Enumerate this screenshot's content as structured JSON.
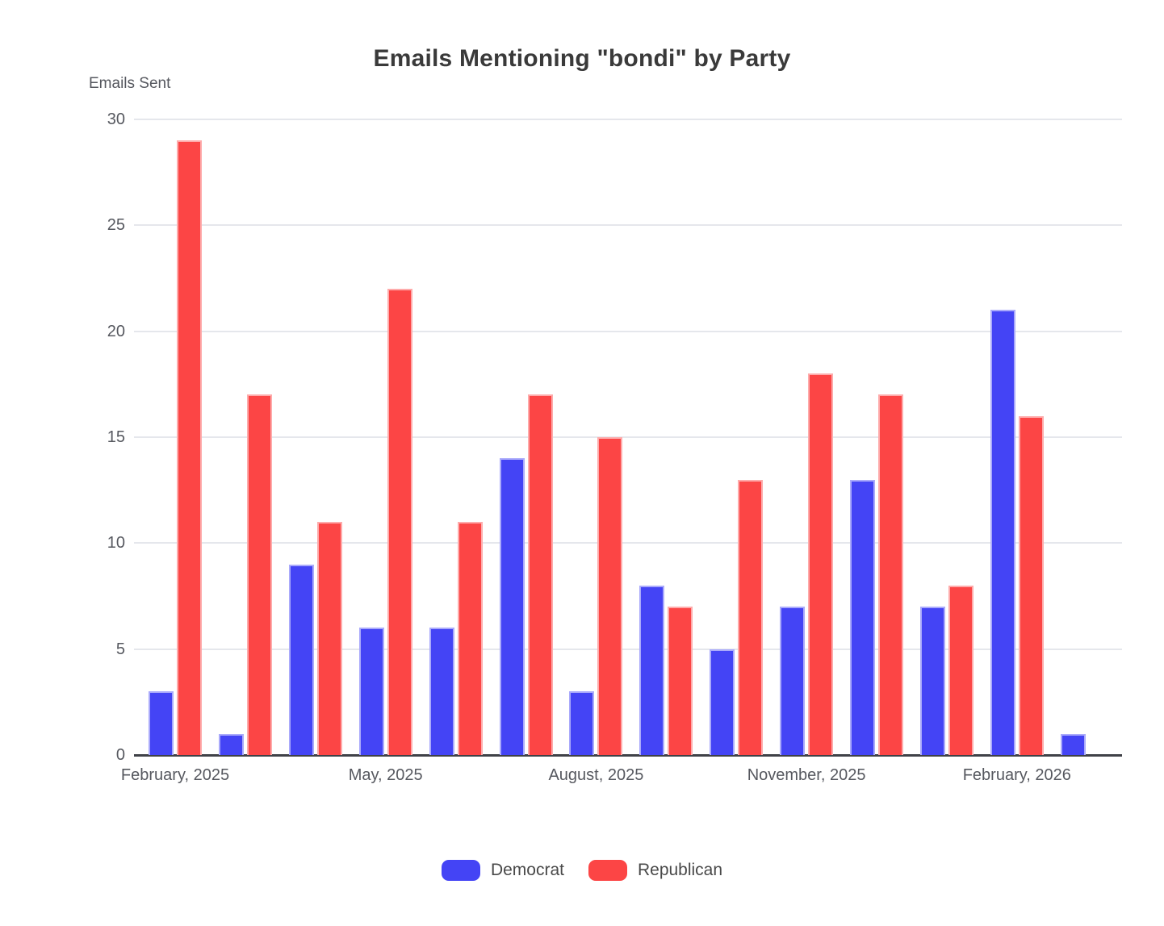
{
  "title": "Emails Mentioning \"bondi\" by Party",
  "y_axis_title": "Emails Sent",
  "colors": {
    "democrat": "#4444f5",
    "republican": "#fc4545",
    "gridline": "#e5e7ec",
    "axis_line": "#3f4147",
    "text": "#56585f",
    "title_text": "#3a3a3a"
  },
  "legend": {
    "position": "bottom",
    "items": [
      {
        "label": "Democrat",
        "color": "#4444f5"
      },
      {
        "label": "Republican",
        "color": "#fc4545"
      }
    ]
  },
  "chart_data": {
    "type": "bar",
    "title": "Emails Mentioning \"bondi\" by Party",
    "xlabel": "",
    "ylabel": "Emails Sent",
    "ylim": [
      0,
      30
    ],
    "yticks": [
      0,
      5,
      10,
      15,
      20,
      25,
      30
    ],
    "grid": true,
    "legend_position": "bottom",
    "categories": [
      "Feb 2025",
      "Mar 2025",
      "Apr 2025",
      "May 2025",
      "Jun 2025",
      "Jul 2025",
      "Aug 2025",
      "Sep 2025",
      "Oct 2025",
      "Nov 2025",
      "Dec 2025",
      "Jan 2026",
      "Feb 2026",
      "Mar 2026"
    ],
    "x_tick_labels": [
      "February, 2025",
      "May, 2025",
      "August, 2025",
      "November, 2025",
      "February, 2026"
    ],
    "x_tick_group_indices": [
      0,
      3,
      6,
      9,
      12
    ],
    "series": [
      {
        "name": "Democrat",
        "color": "#4444f5",
        "values": [
          3,
          1,
          9,
          6,
          6,
          14,
          3,
          8,
          5,
          7,
          13,
          7,
          21,
          1
        ]
      },
      {
        "name": "Republican",
        "color": "#fc4545",
        "values": [
          29,
          17,
          11,
          22,
          11,
          17,
          15,
          7,
          13,
          18,
          17,
          8,
          16,
          0
        ]
      }
    ]
  }
}
